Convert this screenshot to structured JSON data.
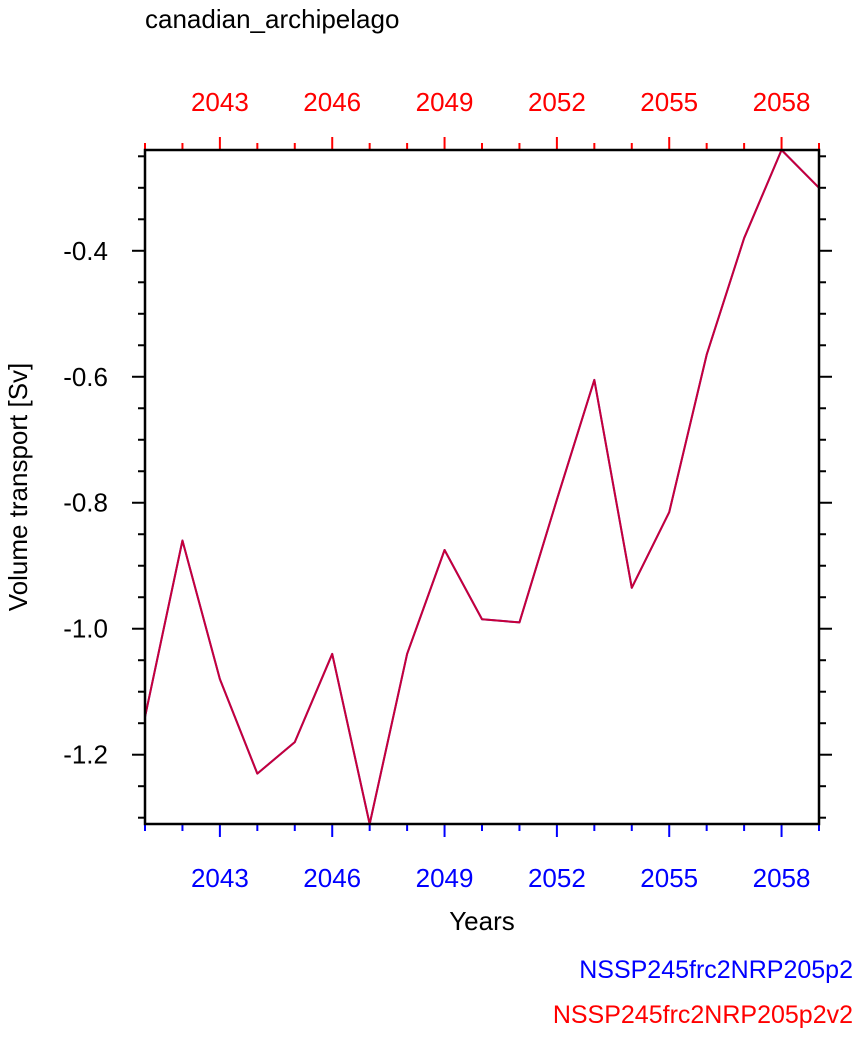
{
  "chart_data": {
    "type": "line",
    "title": "canadian_archipelago",
    "xlabel": "Years",
    "ylabel": "Volume transport [Sv]",
    "xlim": [
      2041,
      2059
    ],
    "ylim": [
      -1.31,
      -0.24
    ],
    "x_major_ticks": [
      2043,
      2046,
      2049,
      2052,
      2055,
      2058
    ],
    "y_major_ticks": [
      -1.2,
      -1.0,
      -0.8,
      -0.6,
      -0.4
    ],
    "y_tick_labels": [
      "-1.2",
      "-1.0",
      "-0.8",
      "-0.6",
      "-0.4"
    ],
    "bottom_axis_color": "#0000ff",
    "top_axis_color": "#ff0000",
    "series": [
      {
        "name": "NSSP245frc2NRP205p2",
        "color": "#0000ff",
        "x": [
          2041,
          2042,
          2043,
          2044,
          2045,
          2046,
          2047,
          2048,
          2049,
          2050,
          2051,
          2052,
          2053,
          2054,
          2055,
          2056,
          2057,
          2058,
          2059
        ],
        "y": [
          -1.14,
          -0.86,
          -1.08,
          -1.23,
          -1.18,
          -1.04,
          -1.31,
          -1.04,
          -0.875,
          -0.985,
          -0.99,
          -0.795,
          -0.605,
          -0.935,
          -0.815,
          -0.565,
          -0.38,
          -0.24,
          -0.3
        ]
      },
      {
        "name": "NSSP245frc2NRP205p2v2",
        "color": "#ff0000",
        "x": [
          2041,
          2042,
          2043,
          2044,
          2045,
          2046,
          2047,
          2048,
          2049,
          2050,
          2051,
          2052,
          2053,
          2054,
          2055,
          2056,
          2057,
          2058,
          2059
        ],
        "y": [
          -1.14,
          -0.86,
          -1.08,
          -1.23,
          -1.18,
          -1.04,
          -1.31,
          -1.04,
          -0.875,
          -0.985,
          -0.99,
          -0.795,
          -0.605,
          -0.935,
          -0.815,
          -0.565,
          -0.38,
          -0.24,
          -0.3
        ]
      }
    ]
  }
}
